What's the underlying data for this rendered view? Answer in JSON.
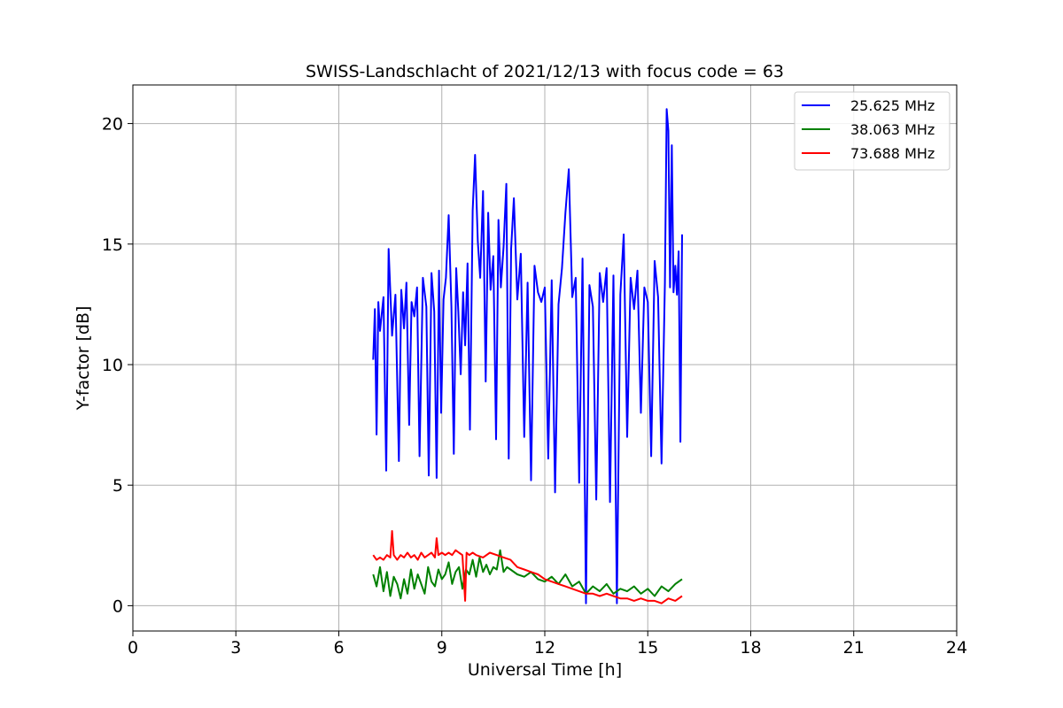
{
  "chart_data": {
    "type": "line",
    "title": "SWISS-Landschlacht of 2021/12/13 with focus code = 63",
    "xlabel": "Universal Time [h]",
    "ylabel": "Y-factor [dB]",
    "xlim": [
      0,
      24
    ],
    "ylim": [
      -1.05,
      21.6
    ],
    "xticks": [
      0,
      3,
      6,
      9,
      12,
      15,
      18,
      21,
      24
    ],
    "yticks": [
      0,
      5,
      10,
      15,
      20
    ],
    "grid": true,
    "legend_position": "top-right",
    "series": [
      {
        "name": "25.625 MHz",
        "color": "#0000ff",
        "x": [
          7.0,
          7.05,
          7.1,
          7.15,
          7.2,
          7.3,
          7.38,
          7.45,
          7.55,
          7.65,
          7.75,
          7.82,
          7.9,
          7.97,
          8.05,
          8.12,
          8.2,
          8.28,
          8.35,
          8.45,
          8.55,
          8.62,
          8.7,
          8.78,
          8.85,
          8.92,
          8.98,
          9.05,
          9.12,
          9.2,
          9.28,
          9.35,
          9.42,
          9.48,
          9.55,
          9.62,
          9.68,
          9.75,
          9.82,
          9.9,
          9.97,
          10.05,
          10.12,
          10.2,
          10.28,
          10.35,
          10.42,
          10.5,
          10.58,
          10.65,
          10.72,
          10.8,
          10.88,
          10.95,
          11.02,
          11.1,
          11.2,
          11.3,
          11.4,
          11.5,
          11.6,
          11.7,
          11.8,
          11.9,
          12.0,
          12.1,
          12.2,
          12.3,
          12.4,
          12.5,
          12.6,
          12.7,
          12.8,
          12.9,
          13.0,
          13.1,
          13.2,
          13.3,
          13.4,
          13.5,
          13.6,
          13.7,
          13.8,
          13.9,
          14.0,
          14.1,
          14.2,
          14.3,
          14.4,
          14.5,
          14.6,
          14.7,
          14.8,
          14.9,
          15.0,
          15.1,
          15.2,
          15.3,
          15.4,
          15.5,
          15.55,
          15.6,
          15.65,
          15.7,
          15.75,
          15.8,
          15.85,
          15.9,
          15.95,
          16.0
        ],
        "y": [
          10.2,
          12.3,
          7.1,
          12.6,
          11.4,
          12.8,
          5.6,
          14.8,
          11.2,
          12.9,
          6.0,
          13.1,
          11.5,
          13.4,
          7.5,
          12.6,
          12.0,
          13.2,
          6.2,
          13.6,
          12.4,
          5.4,
          13.8,
          12.2,
          5.3,
          13.9,
          8.0,
          12.7,
          13.6,
          16.2,
          12.4,
          6.3,
          14.0,
          12.2,
          9.6,
          13.0,
          10.8,
          14.2,
          7.3,
          16.4,
          18.7,
          15.1,
          13.6,
          17.2,
          9.3,
          16.3,
          13.1,
          14.5,
          6.9,
          16.0,
          13.2,
          14.9,
          17.5,
          6.1,
          14.8,
          16.9,
          12.7,
          14.6,
          7.0,
          13.4,
          5.2,
          14.1,
          13.0,
          12.6,
          13.2,
          6.1,
          13.5,
          4.7,
          12.5,
          14.0,
          16.3,
          18.1,
          12.8,
          13.6,
          5.1,
          14.4,
          0.1,
          13.3,
          12.4,
          4.4,
          13.8,
          12.6,
          14.0,
          4.3,
          13.7,
          0.1,
          12.9,
          15.4,
          7.0,
          13.6,
          12.3,
          13.9,
          8.0,
          13.2,
          12.6,
          6.2,
          14.3,
          12.8,
          5.9,
          13.4,
          20.6,
          19.7,
          13.2,
          19.1,
          13.0,
          14.1,
          12.9,
          14.7,
          6.8,
          15.4
        ]
      },
      {
        "name": "38.063 MHz",
        "color": "#008000",
        "x": [
          7.0,
          7.1,
          7.2,
          7.3,
          7.4,
          7.5,
          7.6,
          7.7,
          7.8,
          7.9,
          8.0,
          8.1,
          8.2,
          8.3,
          8.4,
          8.5,
          8.6,
          8.7,
          8.8,
          8.9,
          9.0,
          9.1,
          9.2,
          9.3,
          9.4,
          9.5,
          9.6,
          9.7,
          9.8,
          9.9,
          10.0,
          10.1,
          10.2,
          10.3,
          10.4,
          10.5,
          10.6,
          10.7,
          10.8,
          10.9,
          11.0,
          11.2,
          11.4,
          11.6,
          11.8,
          12.0,
          12.2,
          12.4,
          12.6,
          12.8,
          13.0,
          13.2,
          13.4,
          13.6,
          13.8,
          14.0,
          14.2,
          14.4,
          14.6,
          14.8,
          15.0,
          15.2,
          15.4,
          15.6,
          15.8,
          16.0
        ],
        "y": [
          1.3,
          0.8,
          1.6,
          0.6,
          1.4,
          0.4,
          1.2,
          0.9,
          0.3,
          1.1,
          0.5,
          1.5,
          0.7,
          1.3,
          0.9,
          0.5,
          1.6,
          1.0,
          0.8,
          1.5,
          1.1,
          1.3,
          1.8,
          0.9,
          1.4,
          1.6,
          0.7,
          1.5,
          1.3,
          1.9,
          1.2,
          2.0,
          1.4,
          1.7,
          1.3,
          1.6,
          1.5,
          2.3,
          1.4,
          1.6,
          1.5,
          1.3,
          1.2,
          1.4,
          1.1,
          1.0,
          1.2,
          0.9,
          1.3,
          0.8,
          1.0,
          0.5,
          0.8,
          0.6,
          0.9,
          0.5,
          0.7,
          0.6,
          0.8,
          0.5,
          0.7,
          0.4,
          0.8,
          0.6,
          0.9,
          1.1
        ]
      },
      {
        "name": "73.688 MHz",
        "color": "#ff0000",
        "x": [
          7.0,
          7.1,
          7.2,
          7.3,
          7.4,
          7.5,
          7.55,
          7.6,
          7.7,
          7.8,
          7.9,
          8.0,
          8.1,
          8.2,
          8.3,
          8.4,
          8.5,
          8.6,
          8.7,
          8.8,
          8.85,
          8.9,
          9.0,
          9.1,
          9.2,
          9.3,
          9.4,
          9.5,
          9.6,
          9.68,
          9.72,
          9.8,
          9.9,
          10.0,
          10.2,
          10.4,
          10.6,
          10.8,
          11.0,
          11.2,
          11.4,
          11.6,
          11.8,
          12.0,
          12.2,
          12.4,
          12.6,
          12.8,
          13.0,
          13.2,
          13.4,
          13.6,
          13.8,
          14.0,
          14.2,
          14.4,
          14.6,
          14.8,
          15.0,
          15.2,
          15.4,
          15.6,
          15.8,
          16.0
        ],
        "y": [
          2.1,
          1.9,
          2.0,
          1.9,
          2.1,
          2.0,
          3.1,
          2.1,
          1.9,
          2.1,
          2.0,
          2.2,
          2.0,
          2.1,
          1.9,
          2.2,
          2.0,
          2.1,
          2.2,
          2.0,
          2.8,
          2.1,
          2.2,
          2.1,
          2.2,
          2.1,
          2.3,
          2.2,
          2.1,
          0.2,
          2.2,
          2.1,
          2.2,
          2.1,
          2.0,
          2.2,
          2.1,
          2.0,
          1.9,
          1.6,
          1.5,
          1.4,
          1.3,
          1.1,
          1.0,
          0.9,
          0.8,
          0.7,
          0.6,
          0.5,
          0.5,
          0.4,
          0.5,
          0.4,
          0.3,
          0.3,
          0.2,
          0.3,
          0.2,
          0.2,
          0.1,
          0.3,
          0.2,
          0.4
        ]
      }
    ]
  }
}
